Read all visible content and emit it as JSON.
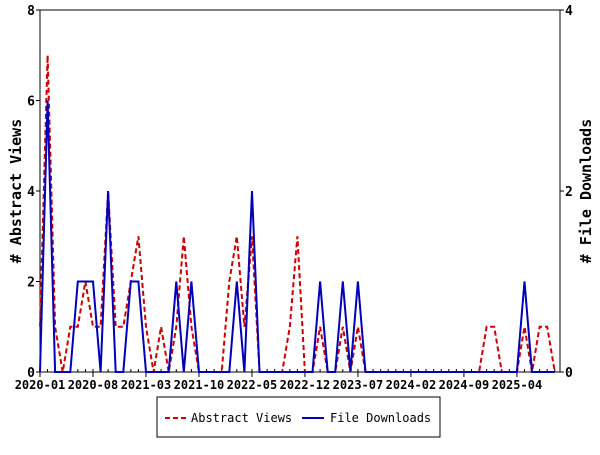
{
  "chart_data": {
    "type": "line",
    "title": "",
    "xlabel": "",
    "ylabel": "# Abstract Views",
    "y2label": "# File Downloads",
    "ylim": [
      0,
      8
    ],
    "y2lim": [
      0,
      4
    ],
    "yticks": [
      "0",
      "2",
      "4",
      "6",
      "8"
    ],
    "y2ticks": [
      "0",
      "2",
      "4"
    ],
    "start_month": "2020-01",
    "xtick_labels": [
      "2020-01",
      "2020-08",
      "2021-03",
      "2021-10",
      "2022-05",
      "2022-12",
      "2023-07",
      "2024-02",
      "2024-09",
      "2025-04"
    ],
    "xtick_step_months": 7,
    "legend_position": "bottom",
    "series": [
      {
        "name": "Abstract Views",
        "axis": "left",
        "color": "#cc0000",
        "style": "dashed",
        "values": [
          1,
          7,
          1,
          0,
          1,
          1,
          2,
          1,
          1,
          4,
          1,
          1,
          2,
          3,
          1,
          0,
          1,
          0,
          1,
          3,
          1,
          0,
          0,
          0,
          0,
          2,
          3,
          1,
          3,
          0,
          0,
          0,
          0,
          1,
          3,
          0,
          0,
          1,
          0,
          0,
          1,
          0,
          1,
          0,
          0,
          0,
          0,
          0,
          0,
          0,
          0,
          0,
          0,
          0,
          0,
          0,
          0,
          0,
          0,
          1,
          1,
          0,
          0,
          0,
          1,
          0,
          1,
          1,
          0
        ]
      },
      {
        "name": "File Downloads",
        "axis": "right",
        "color": "#0000bb",
        "style": "solid",
        "values": [
          0,
          3,
          0,
          0,
          0,
          1,
          1,
          1,
          0,
          2,
          0,
          0,
          1,
          1,
          0,
          0,
          0,
          0,
          1,
          0,
          1,
          0,
          0,
          0,
          0,
          0,
          1,
          0,
          2,
          0,
          0,
          0,
          0,
          0,
          0,
          0,
          0,
          1,
          0,
          0,
          1,
          0,
          1,
          0,
          0,
          0,
          0,
          0,
          0,
          0,
          0,
          0,
          0,
          0,
          0,
          0,
          0,
          0,
          0,
          0,
          0,
          0,
          0,
          0,
          1,
          0,
          0,
          0,
          0
        ]
      }
    ]
  }
}
